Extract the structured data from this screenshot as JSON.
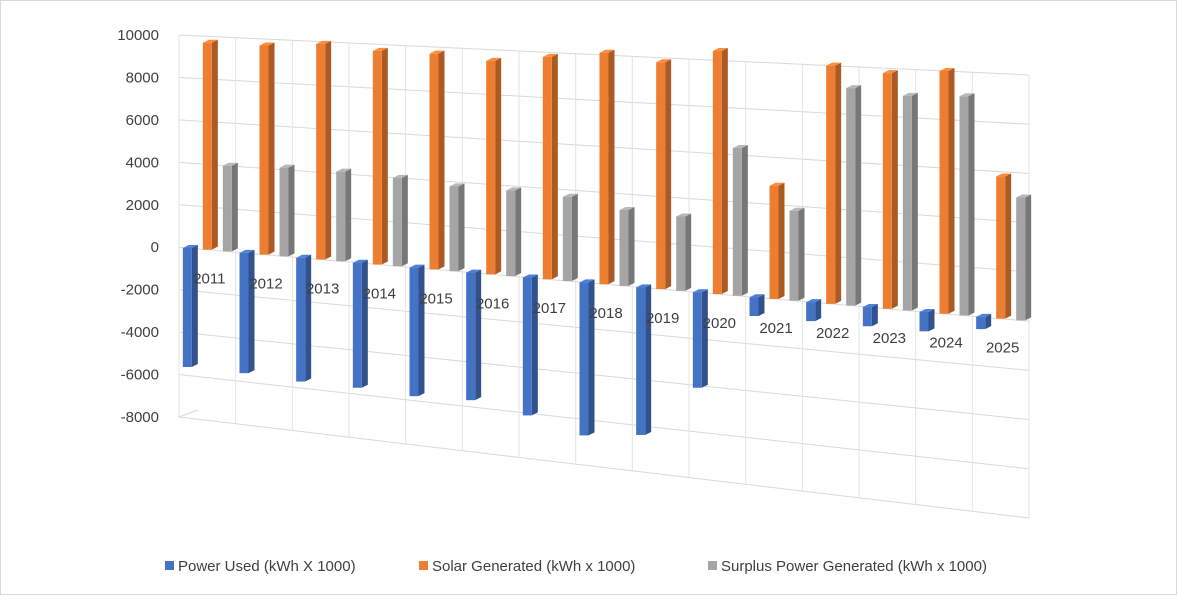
{
  "chart_data": {
    "type": "bar",
    "title": "",
    "xlabel": "",
    "ylabel": "",
    "ylim": [
      -8000,
      10000
    ],
    "y_ticks": [
      10000,
      8000,
      6000,
      4000,
      2000,
      0,
      -2000,
      -4000,
      -6000,
      -8000
    ],
    "categories": [
      "2011",
      "2012",
      "2013",
      "2014",
      "2015",
      "2016",
      "2017",
      "2018",
      "2019",
      "2020",
      "2021",
      "2022",
      "2023",
      "2024",
      "2025"
    ],
    "series": [
      {
        "name": "Power Used (kWh X 1000)",
        "color": "#4472C4",
        "values": [
          -5600,
          -5600,
          -5700,
          -5700,
          -5800,
          -5700,
          -6100,
          -6700,
          -6400,
          -4100,
          -800,
          -800,
          -800,
          -800,
          -500
        ]
      },
      {
        "name": "Solar Generated (kWh x 1000)",
        "color": "#ED7D31",
        "values": [
          9700,
          9700,
          9900,
          9700,
          9700,
          9500,
          9800,
          10100,
          9800,
          10400,
          4800,
          10000,
          9800,
          10000,
          5800
        ]
      },
      {
        "name": "Surplus Power Generated (kWh x 1000)",
        "color": "#A5A5A5",
        "values": [
          4000,
          4100,
          4100,
          4000,
          3800,
          3800,
          3700,
          3300,
          3200,
          6300,
          3800,
          9100,
          8900,
          9000,
          5000
        ]
      }
    ],
    "grid": true,
    "legend_position": "bottom"
  }
}
